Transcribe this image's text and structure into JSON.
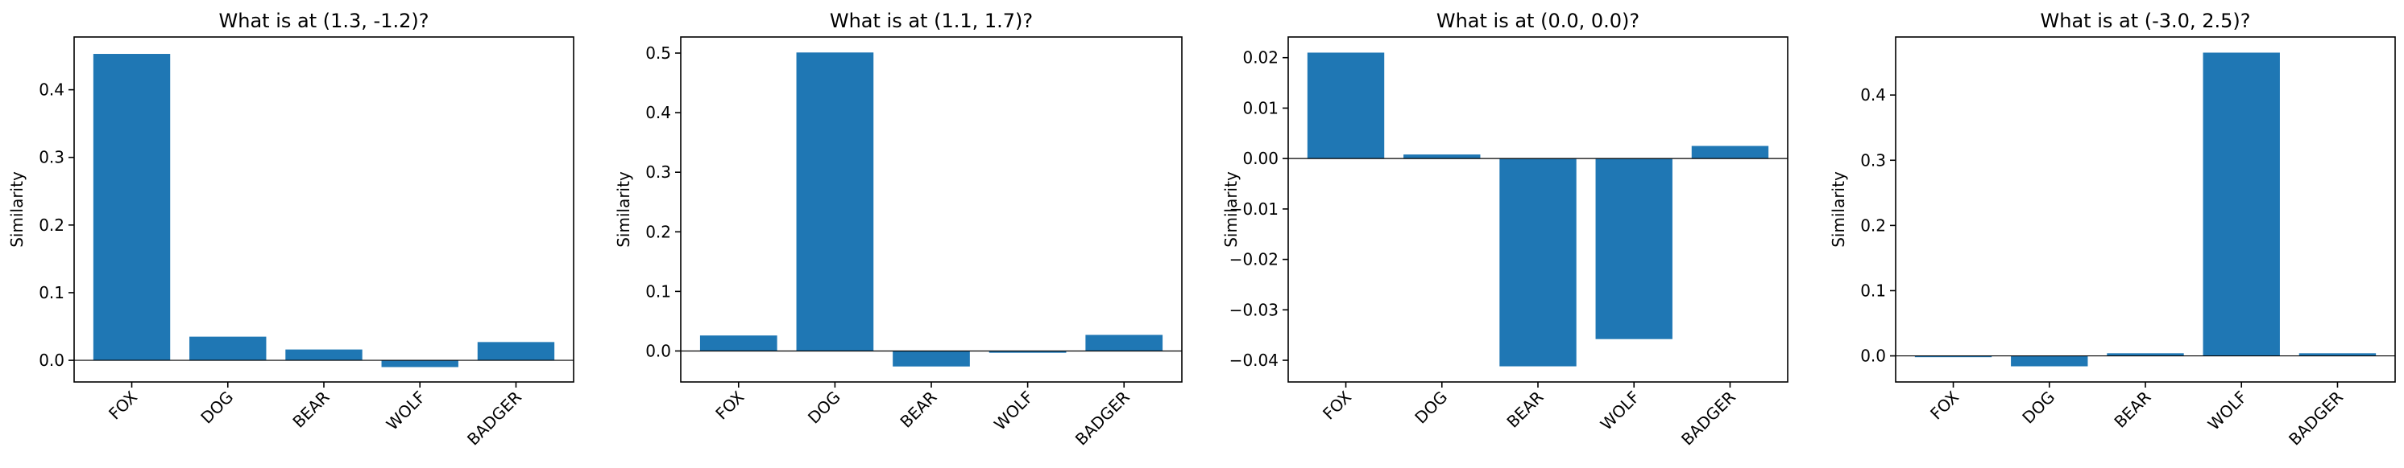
{
  "chart_data": [
    {
      "type": "bar",
      "title": "What is at (1.3, -1.2)?",
      "ylabel": "Similarity",
      "categories": [
        "FOX",
        "DOG",
        "BEAR",
        "WOLF",
        "BADGER"
      ],
      "values": [
        0.453,
        0.035,
        0.016,
        -0.01,
        0.027
      ],
      "ylim": [
        -0.032,
        0.478
      ],
      "yticks": [
        0.0,
        0.1,
        0.2,
        0.3,
        0.4
      ],
      "ytick_labels": [
        "0.0",
        "0.1",
        "0.2",
        "0.3",
        "0.4"
      ],
      "color": "#1f77b4"
    },
    {
      "type": "bar",
      "title": "What is at (1.1, 1.7)?",
      "ylabel": "Similarity",
      "categories": [
        "FOX",
        "DOG",
        "BEAR",
        "WOLF",
        "BADGER"
      ],
      "values": [
        0.026,
        0.501,
        -0.026,
        -0.003,
        0.027
      ],
      "ylim": [
        -0.052,
        0.527
      ],
      "yticks": [
        0.0,
        0.1,
        0.2,
        0.3,
        0.4,
        0.5
      ],
      "ytick_labels": [
        "0.0",
        "0.1",
        "0.2",
        "0.3",
        "0.4",
        "0.5"
      ],
      "color": "#1f77b4"
    },
    {
      "type": "bar",
      "title": "What is at (0.0, 0.0)?",
      "ylabel": "Similarity",
      "categories": [
        "FOX",
        "DOG",
        "BEAR",
        "WOLF",
        "BADGER"
      ],
      "values": [
        0.021,
        0.0008,
        -0.0412,
        -0.0358,
        0.0025
      ],
      "ylim": [
        -0.0443,
        0.0241
      ],
      "yticks": [
        0.02,
        0.01,
        0.0,
        -0.01,
        -0.02,
        -0.03,
        -0.04
      ],
      "ytick_labels": [
        "0.02",
        "0.01",
        "0.00",
        "−0.01",
        "−0.02",
        "−0.03",
        "−0.04"
      ],
      "color": "#1f77b4"
    },
    {
      "type": "bar",
      "title": "What is at (-3.0, 2.5)?",
      "ylabel": "Similarity",
      "categories": [
        "FOX",
        "DOG",
        "BEAR",
        "WOLF",
        "BADGER"
      ],
      "values": [
        -0.002,
        -0.016,
        0.004,
        0.465,
        0.004
      ],
      "ylim": [
        -0.04,
        0.489
      ],
      "yticks": [
        0.0,
        0.1,
        0.2,
        0.3,
        0.4
      ],
      "ytick_labels": [
        "0.0",
        "0.1",
        "0.2",
        "0.3",
        "0.4"
      ],
      "color": "#1f77b4"
    }
  ]
}
